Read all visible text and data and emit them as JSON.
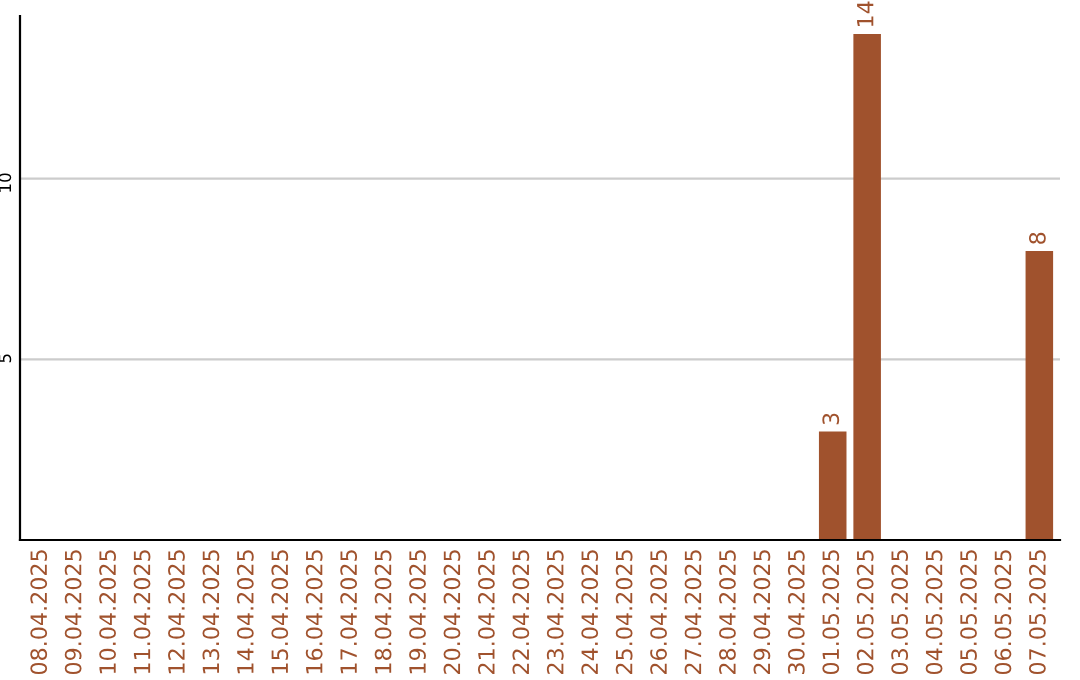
{
  "chart_data": {
    "type": "bar",
    "categories": [
      "08.04.2025",
      "09.04.2025",
      "10.04.2025",
      "11.04.2025",
      "12.04.2025",
      "13.04.2025",
      "14.04.2025",
      "15.04.2025",
      "16.04.2025",
      "17.04.2025",
      "18.04.2025",
      "19.04.2025",
      "20.04.2025",
      "21.04.2025",
      "22.04.2025",
      "23.04.2025",
      "24.04.2025",
      "25.04.2025",
      "26.04.2025",
      "27.04.2025",
      "28.04.2025",
      "29.04.2025",
      "30.04.2025",
      "01.05.2025",
      "02.05.2025",
      "03.05.2025",
      "04.05.2025",
      "05.05.2025",
      "06.05.2025",
      "07.05.2025"
    ],
    "values": [
      0,
      0,
      0,
      0,
      0,
      0,
      0,
      0,
      0,
      0,
      0,
      0,
      0,
      0,
      0,
      0,
      0,
      0,
      0,
      0,
      0,
      0,
      0,
      3,
      14,
      0,
      0,
      0,
      0,
      8
    ],
    "value_labels": [
      null,
      null,
      null,
      null,
      null,
      null,
      null,
      null,
      null,
      null,
      null,
      null,
      null,
      null,
      null,
      null,
      null,
      null,
      null,
      null,
      null,
      null,
      null,
      "3",
      "14",
      null,
      null,
      null,
      null,
      "8"
    ],
    "color": "#a0522d",
    "ylim": [
      0,
      14.5
    ],
    "yticks": [
      5,
      10
    ],
    "grid": "y"
  }
}
